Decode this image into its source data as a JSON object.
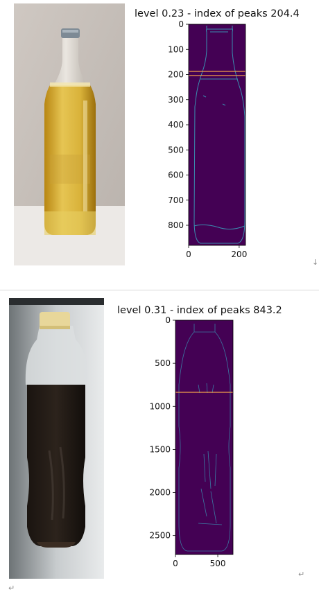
{
  "figures": [
    {
      "title": "level 0.23 - index of peaks 204.4",
      "photo_icon": "beer-bottle-photo",
      "y_ticks": [
        "0",
        "100",
        "200",
        "300",
        "400",
        "500",
        "600",
        "700",
        "800"
      ],
      "x_ticks": [
        "0",
        "200"
      ],
      "peak_index": 204.4,
      "level": 0.23,
      "colors": {
        "background": "#440154",
        "edges": "#3a8fb0",
        "peak_line": "#f0a04b"
      }
    },
    {
      "title": "level 0.31 - index of peaks 843.2",
      "photo_icon": "cola-bottle-photo",
      "y_ticks": [
        "0",
        "500",
        "1000",
        "1500",
        "2000",
        "2500"
      ],
      "x_ticks": [
        "0",
        "500"
      ],
      "peak_index": 843.2,
      "level": 0.31,
      "colors": {
        "background": "#440154",
        "edges": "#3a8fb0",
        "peak_line": "#f0a04b"
      }
    }
  ],
  "marks": {
    "line_break_arrow": "↓",
    "return_mark": "↵"
  },
  "chart_data": [
    {
      "type": "heatmap",
      "title": "level 0.23 - index of peaks 204.4",
      "xlabel": "",
      "ylabel": "",
      "xlim": [
        0,
        225
      ],
      "ylim": [
        880,
        0
      ],
      "x_ticks": [
        0,
        200
      ],
      "y_ticks": [
        0,
        100,
        200,
        300,
        400,
        500,
        600,
        700,
        800
      ],
      "horizontal_lines": [
        190,
        204.4
      ],
      "grid": false
    },
    {
      "type": "heatmap",
      "title": "level 0.31 - index of peaks 843.2",
      "xlabel": "",
      "ylabel": "",
      "xlim": [
        0,
        680
      ],
      "ylim": [
        2720,
        0
      ],
      "x_ticks": [
        0,
        500
      ],
      "y_ticks": [
        0,
        500,
        1000,
        1500,
        2000,
        2500
      ],
      "horizontal_lines": [
        843.2
      ],
      "grid": false
    }
  ]
}
